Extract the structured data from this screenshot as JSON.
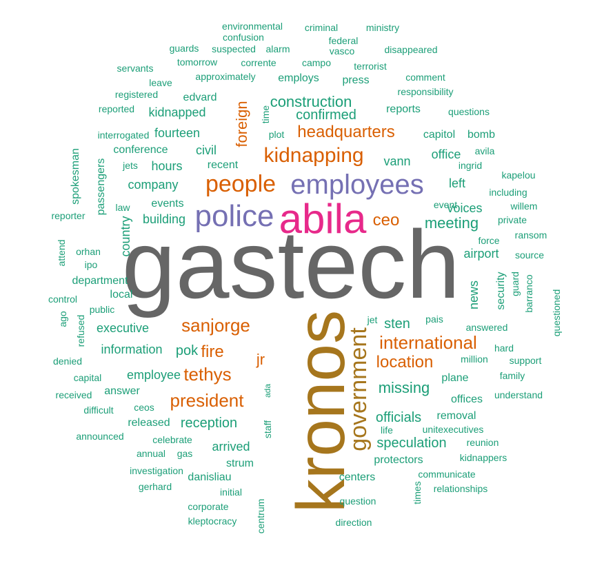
{
  "palette": {
    "gray": "#666666",
    "gold": "#a6761d",
    "pink": "#e7298a",
    "purple": "#7570b3",
    "orange": "#d95f02",
    "teal": "#1b9e77"
  },
  "words": [
    {
      "text": "gastech",
      "color": "gray"
    },
    {
      "text": "kronos",
      "color": "gold",
      "vertical": true
    },
    {
      "text": "abila",
      "color": "pink"
    },
    {
      "text": "police",
      "color": "purple"
    },
    {
      "text": "employees",
      "color": "purple"
    },
    {
      "text": "people",
      "color": "orange"
    },
    {
      "text": "kidnapping",
      "color": "orange"
    },
    {
      "text": "headquarters",
      "color": "orange"
    },
    {
      "text": "government",
      "color": "gold",
      "vertical": true
    },
    {
      "text": "sanjorge",
      "color": "orange"
    },
    {
      "text": "international",
      "color": "orange"
    },
    {
      "text": "location",
      "color": "orange"
    },
    {
      "text": "president",
      "color": "orange"
    },
    {
      "text": "tethys",
      "color": "orange"
    },
    {
      "text": "fire",
      "color": "orange"
    },
    {
      "text": "ceo",
      "color": "orange"
    },
    {
      "text": "foreign",
      "color": "orange",
      "vertical": true
    },
    {
      "text": "jr",
      "color": "orange"
    },
    {
      "text": "construction",
      "color": "teal"
    },
    {
      "text": "confirmed",
      "color": "teal"
    },
    {
      "text": "meeting",
      "color": "teal"
    },
    {
      "text": "missing",
      "color": "teal"
    },
    {
      "text": "pok",
      "color": "teal"
    },
    {
      "text": "sten",
      "color": "teal"
    },
    {
      "text": "officials",
      "color": "teal"
    },
    {
      "text": "speculation",
      "color": "teal"
    },
    {
      "text": "reception",
      "color": "teal"
    },
    {
      "text": "employee",
      "color": "teal"
    },
    {
      "text": "information",
      "color": "teal"
    },
    {
      "text": "executive",
      "color": "teal"
    },
    {
      "text": "company",
      "color": "teal"
    },
    {
      "text": "building",
      "color": "teal"
    },
    {
      "text": "hours",
      "color": "teal"
    },
    {
      "text": "civil",
      "color": "teal"
    },
    {
      "text": "fourteen",
      "color": "teal"
    },
    {
      "text": "kidnapped",
      "color": "teal"
    },
    {
      "text": "vann",
      "color": "teal"
    },
    {
      "text": "arrived",
      "color": "teal"
    },
    {
      "text": "voices",
      "color": "teal"
    },
    {
      "text": "airport",
      "color": "teal"
    },
    {
      "text": "news",
      "color": "teal",
      "vertical": true
    },
    {
      "text": "left",
      "color": "teal"
    },
    {
      "text": "office",
      "color": "teal"
    },
    {
      "text": "country",
      "color": "teal",
      "vertical": true
    },
    {
      "text": "answer",
      "color": "teal"
    },
    {
      "text": "released",
      "color": "teal"
    },
    {
      "text": "strum",
      "color": "teal"
    },
    {
      "text": "danisliau",
      "color": "teal"
    },
    {
      "text": "centers",
      "color": "teal"
    },
    {
      "text": "protectors",
      "color": "teal"
    },
    {
      "text": "removal",
      "color": "teal"
    },
    {
      "text": "offices",
      "color": "teal"
    },
    {
      "text": "plane",
      "color": "teal"
    },
    {
      "text": "employs",
      "color": "teal"
    },
    {
      "text": "press",
      "color": "teal"
    },
    {
      "text": "edvard",
      "color": "teal"
    },
    {
      "text": "reports",
      "color": "teal"
    },
    {
      "text": "capitol",
      "color": "teal"
    },
    {
      "text": "bomb",
      "color": "teal"
    },
    {
      "text": "conference",
      "color": "teal"
    },
    {
      "text": "recent",
      "color": "teal"
    },
    {
      "text": "events",
      "color": "teal"
    },
    {
      "text": "department",
      "color": "teal"
    },
    {
      "text": "local",
      "color": "teal"
    },
    {
      "text": "public",
      "color": "teal"
    },
    {
      "text": "celebrate",
      "color": "teal"
    },
    {
      "text": "gas",
      "color": "teal"
    },
    {
      "text": "annual",
      "color": "teal"
    },
    {
      "text": "investigation",
      "color": "teal"
    },
    {
      "text": "initial",
      "color": "teal"
    },
    {
      "text": "corporate",
      "color": "teal"
    },
    {
      "text": "kleptocracy",
      "color": "teal"
    },
    {
      "text": "question",
      "color": "teal"
    },
    {
      "text": "direction",
      "color": "teal"
    },
    {
      "text": "communicate",
      "color": "teal"
    },
    {
      "text": "relationships",
      "color": "teal"
    },
    {
      "text": "kidnappers",
      "color": "teal"
    },
    {
      "text": "reunion",
      "color": "teal"
    },
    {
      "text": "unitexecutives",
      "color": "teal"
    },
    {
      "text": "life",
      "color": "teal"
    },
    {
      "text": "understand",
      "color": "teal"
    },
    {
      "text": "family",
      "color": "teal"
    },
    {
      "text": "support",
      "color": "teal"
    },
    {
      "text": "million",
      "color": "teal"
    },
    {
      "text": "hard",
      "color": "teal"
    },
    {
      "text": "answered",
      "color": "teal"
    },
    {
      "text": "pais",
      "color": "teal"
    },
    {
      "text": "jet",
      "color": "teal"
    },
    {
      "text": "security",
      "color": "teal",
      "vertical": true
    },
    {
      "text": "guard",
      "color": "teal",
      "vertical": true
    },
    {
      "text": "barranco",
      "color": "teal",
      "vertical": true
    },
    {
      "text": "questioned",
      "color": "teal",
      "vertical": true
    },
    {
      "text": "source",
      "color": "teal"
    },
    {
      "text": "ransom",
      "color": "teal"
    },
    {
      "text": "force",
      "color": "teal"
    },
    {
      "text": "private",
      "color": "teal"
    },
    {
      "text": "willem",
      "color": "teal"
    },
    {
      "text": "event",
      "color": "teal"
    },
    {
      "text": "including",
      "color": "teal"
    },
    {
      "text": "kapelou",
      "color": "teal"
    },
    {
      "text": "ingrid",
      "color": "teal"
    },
    {
      "text": "avila",
      "color": "teal"
    },
    {
      "text": "questions",
      "color": "teal"
    },
    {
      "text": "responsibility",
      "color": "teal"
    },
    {
      "text": "comment",
      "color": "teal"
    },
    {
      "text": "terrorist",
      "color": "teal"
    },
    {
      "text": "disappeared",
      "color": "teal"
    },
    {
      "text": "vasco",
      "color": "teal"
    },
    {
      "text": "federal",
      "color": "teal"
    },
    {
      "text": "ministry",
      "color": "teal"
    },
    {
      "text": "criminal",
      "color": "teal"
    },
    {
      "text": "environmental",
      "color": "teal"
    },
    {
      "text": "confusion",
      "color": "teal"
    },
    {
      "text": "suspected",
      "color": "teal"
    },
    {
      "text": "alarm",
      "color": "teal"
    },
    {
      "text": "guards",
      "color": "teal"
    },
    {
      "text": "campo",
      "color": "teal"
    },
    {
      "text": "corrente",
      "color": "teal"
    },
    {
      "text": "tomorrow",
      "color": "teal"
    },
    {
      "text": "servants",
      "color": "teal"
    },
    {
      "text": "approximately",
      "color": "teal"
    },
    {
      "text": "leave",
      "color": "teal"
    },
    {
      "text": "registered",
      "color": "teal"
    },
    {
      "text": "reported",
      "color": "teal"
    },
    {
      "text": "interrogated",
      "color": "teal"
    },
    {
      "text": "jets",
      "color": "teal"
    },
    {
      "text": "spokesman",
      "color": "teal",
      "vertical": true
    },
    {
      "text": "passengers",
      "color": "teal",
      "vertical": true
    },
    {
      "text": "law",
      "color": "teal"
    },
    {
      "text": "reporter",
      "color": "teal"
    },
    {
      "text": "attend",
      "color": "teal",
      "vertical": true
    },
    {
      "text": "orhan",
      "color": "teal"
    },
    {
      "text": "ipo",
      "color": "teal"
    },
    {
      "text": "control",
      "color": "teal"
    },
    {
      "text": "ago",
      "color": "teal",
      "vertical": true
    },
    {
      "text": "refused",
      "color": "teal",
      "vertical": true
    },
    {
      "text": "denied",
      "color": "teal"
    },
    {
      "text": "capital",
      "color": "teal"
    },
    {
      "text": "received",
      "color": "teal"
    },
    {
      "text": "difficult",
      "color": "teal"
    },
    {
      "text": "ceos",
      "color": "teal"
    },
    {
      "text": "announced",
      "color": "teal"
    },
    {
      "text": "gerhard",
      "color": "teal"
    },
    {
      "text": "staff",
      "color": "teal",
      "vertical": true
    },
    {
      "text": "ada",
      "color": "teal",
      "vertical": true
    },
    {
      "text": "centrum",
      "color": "teal",
      "vertical": true
    },
    {
      "text": "times",
      "color": "teal",
      "vertical": true
    },
    {
      "text": "time",
      "color": "teal",
      "vertical": true
    },
    {
      "text": "plot",
      "color": "teal"
    }
  ]
}
